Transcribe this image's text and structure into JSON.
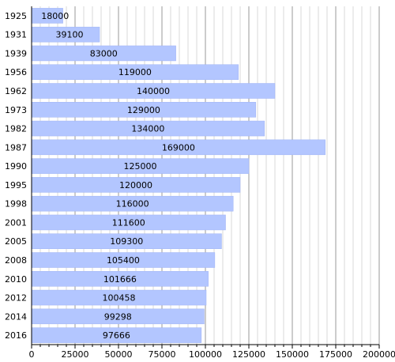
{
  "chart_data": {
    "type": "bar",
    "orientation": "horizontal",
    "categories": [
      "1925",
      "1931",
      "1939",
      "1956",
      "1962",
      "1973",
      "1982",
      "1987",
      "1990",
      "1995",
      "1998",
      "2001",
      "2005",
      "2008",
      "2010",
      "2012",
      "2014",
      "2016"
    ],
    "values": [
      18000,
      39100,
      83000,
      119000,
      140000,
      129000,
      134000,
      169000,
      125000,
      120000,
      116000,
      111600,
      109300,
      105400,
      101666,
      100458,
      99298,
      97666
    ],
    "data_labels": [
      "18000",
      "39100",
      "83000",
      "119000",
      "140000",
      "129000",
      "134000",
      "169000",
      "125000",
      "120000",
      "116000",
      "111600",
      "109300",
      "105400",
      "101666",
      "100458",
      "99298",
      "97666"
    ],
    "x_ticks": [
      0,
      25000,
      50000,
      75000,
      100000,
      125000,
      150000,
      175000,
      200000
    ],
    "x_tick_labels": [
      "0",
      "25000",
      "50000",
      "75000",
      "100000",
      "125000",
      "150000",
      "175000",
      "200000"
    ],
    "xlim": [
      0,
      200000
    ],
    "title": "",
    "xlabel": "",
    "ylabel": "",
    "grid": true,
    "colors": {
      "bar_fill": "#b3c6ff",
      "bar_stroke": "#9fb3f5",
      "major_grid": "#9a9a9a",
      "minor_grid": "#d9d9d9",
      "axis": "#000000"
    }
  }
}
